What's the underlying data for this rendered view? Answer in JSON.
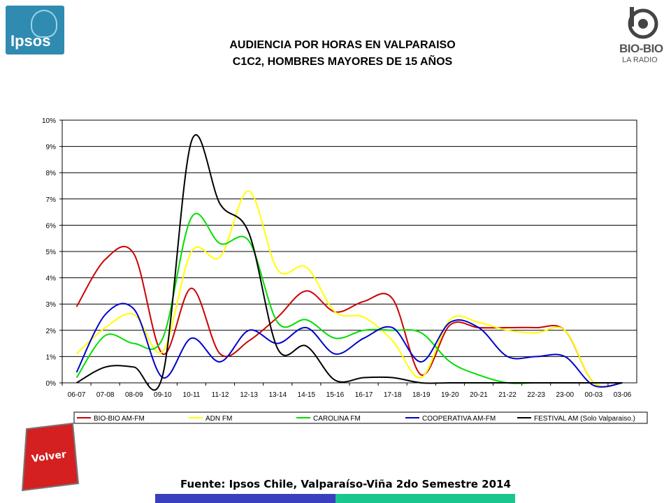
{
  "header": {
    "title_line1": "AUDIENCIA POR HORAS EN VALPARAISO",
    "title_line2": "C1C2, HOMBRES MAYORES DE 15 AÑOS"
  },
  "logos": {
    "ipsos": "Ipsos",
    "biobio": "BIO-BIO",
    "biobio_sub": "LA RADIO"
  },
  "nav": {
    "volver_label": "Volver"
  },
  "footer": {
    "source": "Fuente: Ipsos Chile, Valparaíso-Viña 2do Semestre 2014"
  },
  "colors": {
    "bio_bio": "#cc0000",
    "adn": "#ffff00",
    "carolina": "#00dd00",
    "cooperativa": "#0000cc",
    "festival": "#000000",
    "band_blue": "#3a3fbf",
    "band_green": "#19c78e"
  },
  "chart_data": {
    "type": "line",
    "title": "",
    "xlabel": "",
    "ylabel": "",
    "ylim": [
      0,
      10
    ],
    "ytick_labels": [
      "0%",
      "1%",
      "2%",
      "3%",
      "4%",
      "5%",
      "6%",
      "7%",
      "8%",
      "9%",
      "10%"
    ],
    "grid": true,
    "legend_position": "bottom",
    "categories": [
      "06-07",
      "07-08",
      "08-09",
      "09-10",
      "10-11",
      "11-12",
      "12-13",
      "13-14",
      "14-15",
      "15-16",
      "16-17",
      "17-18",
      "18-19",
      "19-20",
      "20-21",
      "21-22",
      "22-23",
      "23-00",
      "00-03",
      "03-06"
    ],
    "series": [
      {
        "name": "BIO-BIO AM-FM",
        "color": "#cc0000",
        "values": [
          2.9,
          4.7,
          4.9,
          1.1,
          3.6,
          1.1,
          1.6,
          2.5,
          3.5,
          2.7,
          3.1,
          3.2,
          0.3,
          2.2,
          2.1,
          2.1,
          2.1,
          2.0,
          0.0,
          0.0
        ]
      },
      {
        "name": "ADN FM",
        "color": "#ffff00",
        "values": [
          1.1,
          2.1,
          2.6,
          1.2,
          5.0,
          4.8,
          7.3,
          4.3,
          4.4,
          2.7,
          2.5,
          1.6,
          0.2,
          2.4,
          2.3,
          2.0,
          1.9,
          2.0,
          0.0,
          0.0
        ]
      },
      {
        "name": "CAROLINA FM",
        "color": "#00dd00",
        "values": [
          0.2,
          1.8,
          1.5,
          1.7,
          6.3,
          5.3,
          5.4,
          2.3,
          2.4,
          1.7,
          2.0,
          2.0,
          1.9,
          0.8,
          0.3,
          0.0,
          0.0,
          0.0,
          0.0,
          0.0
        ]
      },
      {
        "name": "COOPERATIVA AM-FM",
        "color": "#0000cc",
        "values": [
          0.4,
          2.6,
          2.8,
          0.2,
          1.7,
          0.8,
          2.0,
          1.5,
          2.1,
          1.1,
          1.7,
          2.1,
          0.8,
          2.3,
          2.1,
          1.0,
          1.0,
          1.0,
          -0.1,
          0.0
        ]
      },
      {
        "name": "FESTIVAL AM (Solo Valparaiso.)",
        "color": "#000000",
        "values": [
          0.0,
          0.6,
          0.6,
          0.3,
          9.2,
          6.8,
          5.7,
          1.3,
          1.4,
          0.1,
          0.2,
          0.2,
          0.0,
          0.0,
          0.0,
          0.0,
          0.0,
          0.0,
          0.0,
          0.0
        ]
      }
    ]
  }
}
